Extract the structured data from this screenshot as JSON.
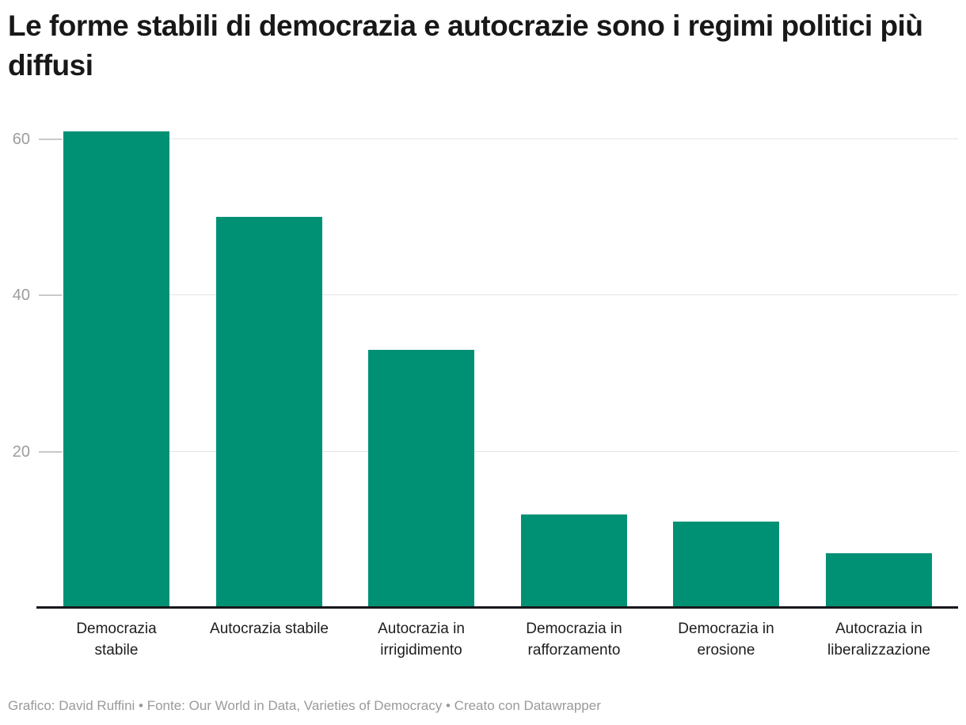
{
  "header": {
    "title": "Le forme stabili di democrazia e autocrazie sono i regimi politici più diffusi"
  },
  "chart_data": {
    "type": "bar",
    "title": "Le forme stabili di democrazia e autocrazie sono i regimi politici più diffusi",
    "categories": [
      "Democrazia stabile",
      "Autocrazia stabile",
      "Autocrazia in irrigidimento",
      "Democrazia in rafforzamento",
      "Democrazia in erosione",
      "Autocrazia in liberalizzazione"
    ],
    "values": [
      61,
      50,
      33,
      12,
      11,
      7
    ],
    "xlabel": "",
    "ylabel": "",
    "yticks": [
      20,
      40,
      60
    ],
    "ylim": [
      0,
      62.6
    ],
    "grid": true,
    "legend": false,
    "colors": {
      "bar": "#009175",
      "axis": "#17181c",
      "gridline": "#e4e4e4",
      "tick_dash": "#c9c9c9",
      "tick_label": "#9d9d9d",
      "category_label": "#1d1d1d"
    }
  },
  "footer": {
    "text": "Grafico: David Ruffini • Fonte: Our World in Data, Varieties of Democracy • Creato con Datawrapper"
  }
}
